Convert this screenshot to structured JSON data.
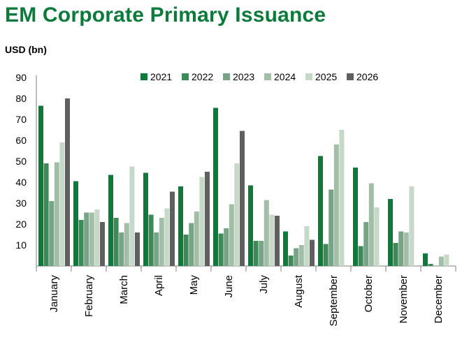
{
  "title": "EM Corporate Primary Issuance",
  "unit_label": "USD (bn)",
  "chart_data": {
    "type": "bar",
    "title": "EM Corporate Primary Issuance",
    "ylabel": "USD (bn)",
    "xlabel": "",
    "ylim": [
      0,
      90
    ],
    "yticks": [
      10,
      20,
      30,
      40,
      50,
      60,
      70,
      80,
      90
    ],
    "grid": false,
    "legend_position": "top",
    "categories": [
      "January",
      "February",
      "March",
      "April",
      "May",
      "June",
      "July",
      "August",
      "September",
      "October",
      "November",
      "December"
    ],
    "series": [
      {
        "name": "2021",
        "color": "#0b7a3b",
        "values": [
          76.5,
          40.5,
          43.5,
          44.5,
          38,
          75.5,
          38.5,
          16.5,
          52.5,
          47,
          32,
          6
        ]
      },
      {
        "name": "2022",
        "color": "#3c8a58",
        "values": [
          49,
          22,
          23,
          24.5,
          15,
          15.5,
          12,
          5,
          10.5,
          9.5,
          11,
          1
        ]
      },
      {
        "name": "2023",
        "color": "#78a387",
        "values": [
          31,
          25.5,
          16,
          16,
          20.5,
          18,
          12,
          8.5,
          36.5,
          21,
          16.5,
          0
        ]
      },
      {
        "name": "2024",
        "color": "#a2bea9",
        "values": [
          49.5,
          25.5,
          20.5,
          23,
          26,
          29.5,
          31.5,
          10,
          58,
          39.5,
          16,
          4.5
        ]
      },
      {
        "name": "2025",
        "color": "#c6d9c9",
        "values": [
          59,
          27,
          47.5,
          27.5,
          42.5,
          49,
          24.5,
          19,
          65,
          28,
          38,
          5.5
        ]
      },
      {
        "name": "2026",
        "color": "#5f5f5f",
        "values": [
          80,
          21,
          16,
          35.5,
          45,
          64.5,
          24,
          12.5,
          null,
          null,
          null,
          null
        ]
      }
    ]
  }
}
